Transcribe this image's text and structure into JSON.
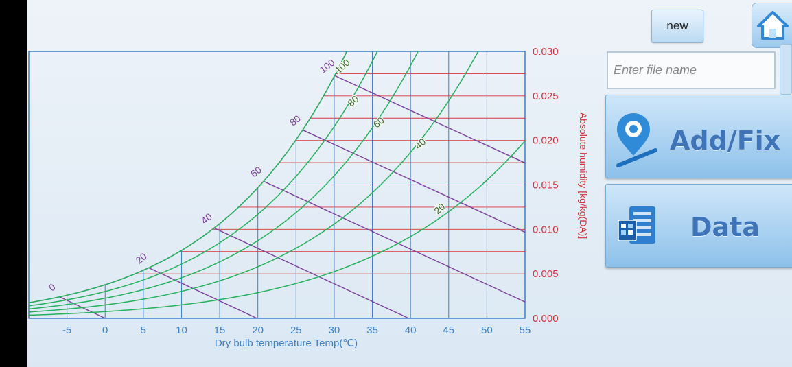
{
  "toolbar": {
    "new_label": "new",
    "home_icon": "home-icon"
  },
  "file": {
    "placeholder": "Enter file name",
    "value": ""
  },
  "actions": {
    "add_fix_label": "Add/Fix",
    "add_fix_icon": "map-pin-edit-icon",
    "data_label": "Data",
    "data_icon": "spreadsheet-icon"
  },
  "colors": {
    "axis_blue": "#3c7fc9",
    "humidity_red": "#d8323a",
    "rh_green": "#25b05a",
    "enthalpy_purple": "#7a3f9c",
    "button_text": "#3f74b8"
  },
  "chart_data": {
    "type": "line",
    "title": "",
    "xlabel": "Dry bulb temperature Temp(℃)",
    "ylabel": "Absolute humidity [kg/kg(DA)]",
    "x_ticks": [
      "-5",
      "0",
      "5",
      "10",
      "15",
      "20",
      "25",
      "30",
      "35",
      "40",
      "45",
      "50",
      "55"
    ],
    "y_ticks": [
      "0.000",
      "0.005",
      "0.010",
      "0.015",
      "0.020",
      "0.025",
      "0.030"
    ],
    "xlim": [
      -10,
      55
    ],
    "ylim": [
      0,
      0.03
    ],
    "grid": true,
    "rh_curves": [
      {
        "label": "20",
        "rh": 20
      },
      {
        "label": "40",
        "rh": 40
      },
      {
        "label": "60",
        "rh": 60
      },
      {
        "label": "80",
        "rh": 80
      },
      {
        "label": "100",
        "rh": 100
      }
    ],
    "enthalpy_lines": [
      {
        "label": "0",
        "h": 0
      },
      {
        "label": "20",
        "h": 20
      },
      {
        "label": "40",
        "h": 40
      },
      {
        "label": "60",
        "h": 60
      },
      {
        "label": "80",
        "h": 80
      },
      {
        "label": "100",
        "h": 100
      }
    ]
  }
}
